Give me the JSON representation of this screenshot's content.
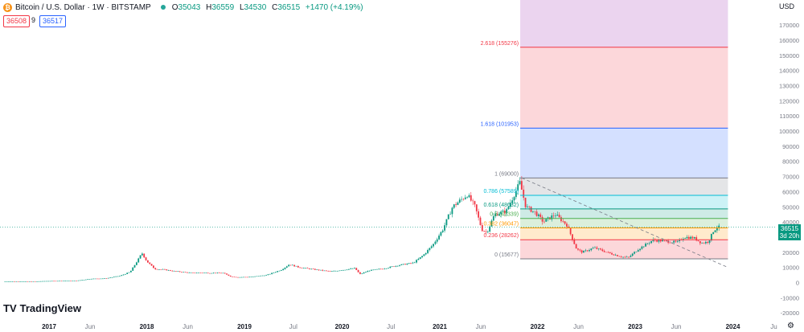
{
  "header": {
    "coin_letter": "₿",
    "symbol_line": "Bitcoin / U.S. Dollar · 1W · BITSTAMP",
    "ohlc": {
      "o_label": "O",
      "o_value": "35043",
      "h_label": "H",
      "h_value": "36559",
      "l_label": "L",
      "l_value": "34530",
      "c_label": "C",
      "c_value": "36515",
      "change": "+1470 (+4.19%)"
    }
  },
  "trade": {
    "sell_price": "36508",
    "spread": "9",
    "buy_price": "36517"
  },
  "currency_label": "USD",
  "price_tag": {
    "price": "36515",
    "countdown": "3d 20h"
  },
  "logo": {
    "mark": "TV",
    "text": "TradingView"
  },
  "settings_icon": "gear-icon",
  "colors": {
    "up": "#089981",
    "down": "#f23645",
    "fib_blue": "#2962ff",
    "fib_red": "#f23645",
    "fib_grey": "#787b86",
    "fib_teal": "#00bcd4",
    "fib_green": "#4caf50",
    "fib_orange": "#ff9800"
  },
  "chart_data": {
    "type": "candlestick",
    "ylim": [
      -30000,
      180000
    ],
    "y_ticks": [
      "170000",
      "160000",
      "150000",
      "140000",
      "130000",
      "120000",
      "110000",
      "100000",
      "90000",
      "80000",
      "70000",
      "60000",
      "50000",
      "40000",
      "30000",
      "20000",
      "10000",
      "0",
      "-10000",
      "-20000"
    ],
    "x_ticks": [
      {
        "label": "2017",
        "t": 2017.0
      },
      {
        "label": "Jun",
        "t": 2017.42
      },
      {
        "label": "2018",
        "t": 2018.0
      },
      {
        "label": "Jun",
        "t": 2018.42
      },
      {
        "label": "2019",
        "t": 2019.0
      },
      {
        "label": "Jul",
        "t": 2019.5
      },
      {
        "label": "2020",
        "t": 2020.0
      },
      {
        "label": "Jul",
        "t": 2020.5
      },
      {
        "label": "2021",
        "t": 2021.0
      },
      {
        "label": "Jun",
        "t": 2021.42
      },
      {
        "label": "2022",
        "t": 2022.0
      },
      {
        "label": "Jun",
        "t": 2022.42
      },
      {
        "label": "2023",
        "t": 2023.0
      },
      {
        "label": "Jun",
        "t": 2023.42
      },
      {
        "label": "2024",
        "t": 2024.0
      },
      {
        "label": "Ju",
        "t": 2024.42
      }
    ],
    "price_path": [
      [
        2016.55,
        600
      ],
      [
        2016.9,
        800
      ],
      [
        2017.0,
        1000
      ],
      [
        2017.3,
        1200
      ],
      [
        2017.45,
        2500
      ],
      [
        2017.6,
        2700
      ],
      [
        2017.75,
        4500
      ],
      [
        2017.85,
        7000
      ],
      [
        2017.93,
        15000
      ],
      [
        2017.97,
        19500
      ],
      [
        2018.02,
        14000
      ],
      [
        2018.1,
        9000
      ],
      [
        2018.2,
        8500
      ],
      [
        2018.3,
        7500
      ],
      [
        2018.45,
        6500
      ],
      [
        2018.6,
        6400
      ],
      [
        2018.8,
        6300
      ],
      [
        2018.88,
        4000
      ],
      [
        2018.95,
        3500
      ],
      [
        2019.1,
        3800
      ],
      [
        2019.25,
        5000
      ],
      [
        2019.4,
        8500
      ],
      [
        2019.48,
        12000
      ],
      [
        2019.58,
        10000
      ],
      [
        2019.75,
        8500
      ],
      [
        2019.9,
        7300
      ],
      [
        2020.05,
        8500
      ],
      [
        2020.15,
        9500
      ],
      [
        2020.2,
        5500
      ],
      [
        2020.3,
        8000
      ],
      [
        2020.45,
        9300
      ],
      [
        2020.6,
        11500
      ],
      [
        2020.75,
        13000
      ],
      [
        2020.85,
        18000
      ],
      [
        2020.95,
        25000
      ],
      [
        2021.05,
        35000
      ],
      [
        2021.15,
        50000
      ],
      [
        2021.3,
        58000
      ],
      [
        2021.38,
        50000
      ],
      [
        2021.45,
        35000
      ],
      [
        2021.5,
        33000
      ],
      [
        2021.58,
        45000
      ],
      [
        2021.7,
        47000
      ],
      [
        2021.78,
        58000
      ],
      [
        2021.84,
        66000
      ],
      [
        2021.9,
        50000
      ],
      [
        2022.0,
        46000
      ],
      [
        2022.08,
        40000
      ],
      [
        2022.2,
        45000
      ],
      [
        2022.32,
        38000
      ],
      [
        2022.42,
        22000
      ],
      [
        2022.48,
        20000
      ],
      [
        2022.6,
        23000
      ],
      [
        2022.75,
        19500
      ],
      [
        2022.88,
        17000
      ],
      [
        2022.95,
        16500
      ],
      [
        2023.05,
        22000
      ],
      [
        2023.2,
        28000
      ],
      [
        2023.3,
        27500
      ],
      [
        2023.45,
        26500
      ],
      [
        2023.52,
        30000
      ],
      [
        2023.62,
        29500
      ],
      [
        2023.7,
        26000
      ],
      [
        2023.77,
        27000
      ],
      [
        2023.82,
        34000
      ],
      [
        2023.86,
        36515
      ]
    ],
    "fib_levels": [
      {
        "ratio": "0",
        "label": "0 (15677)",
        "price": 15677,
        "color": "#787b86"
      },
      {
        "ratio": "0.236",
        "label": "0.236 (28262)",
        "price": 28262,
        "color": "#f23645"
      },
      {
        "ratio": "0.382",
        "label": "0.382 (36047)",
        "price": 36047,
        "color": "#ff9800"
      },
      {
        "ratio": "0.5",
        "label": "0.5 (42339)",
        "price": 42339,
        "color": "#4caf50"
      },
      {
        "ratio": "0.618",
        "label": "0.618 (48632)",
        "price": 48632,
        "color": "#089981"
      },
      {
        "ratio": "0.786",
        "label": "0.786 (57589)",
        "price": 57589,
        "color": "#00bcd4"
      },
      {
        "ratio": "1",
        "label": "1 (69000)",
        "price": 69000,
        "color": "#787b86"
      },
      {
        "ratio": "1.618",
        "label": "1.618 (101953)",
        "price": 101953,
        "color": "#2962ff"
      },
      {
        "ratio": "2.618",
        "label": "2.618 (155276)",
        "price": 155276,
        "color": "#f23645"
      }
    ],
    "fib_range_t": [
      2021.84,
      2023.95
    ],
    "trendline": [
      [
        2021.84,
        69000
      ],
      [
        2023.95,
        10000
      ]
    ],
    "last_price": 36515
  }
}
